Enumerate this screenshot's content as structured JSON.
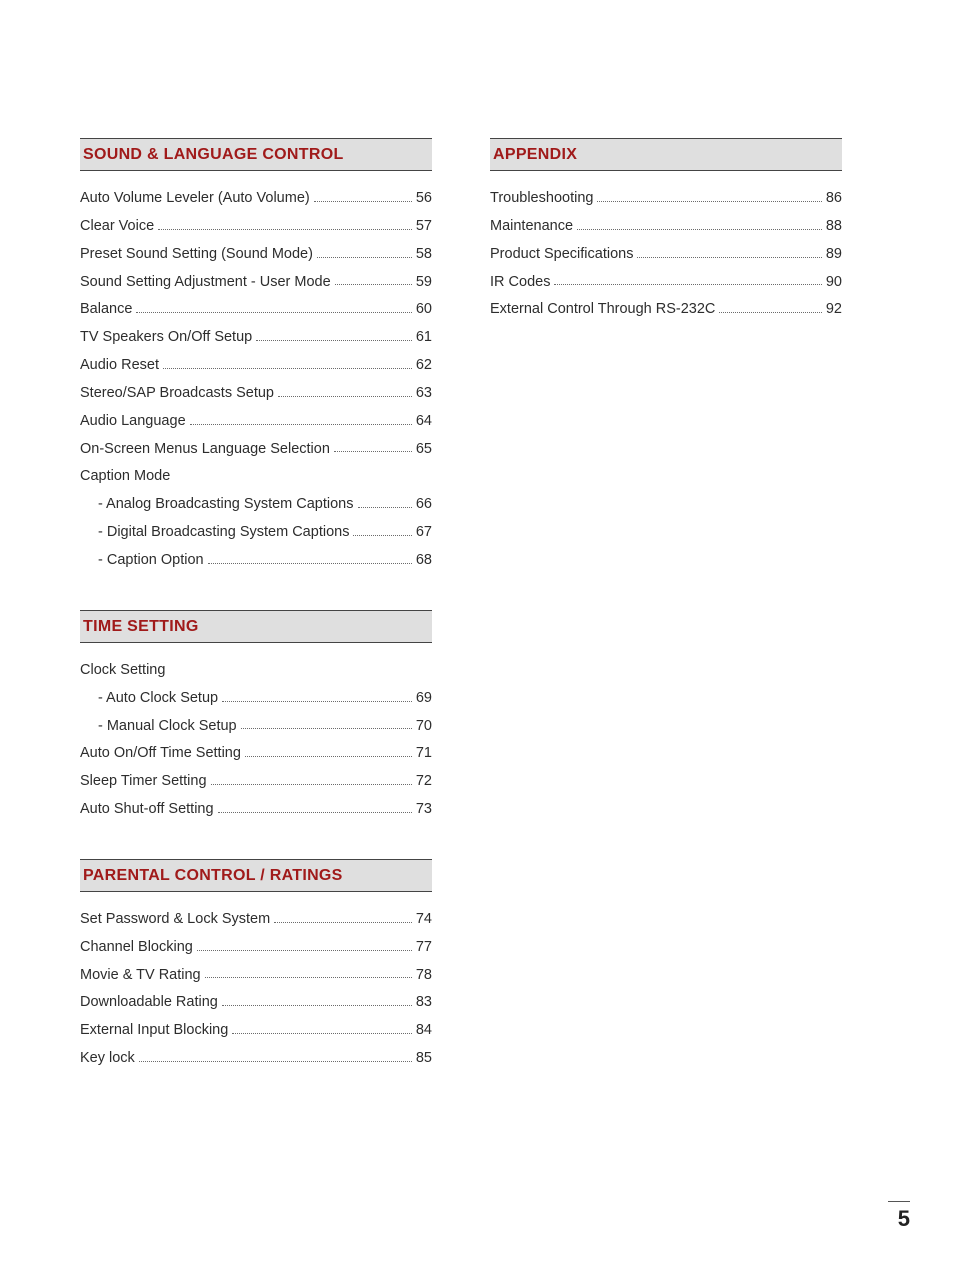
{
  "page_number": "5",
  "colors": {
    "heading_bg": "#dfdfdf",
    "heading_text": "#a01a1a",
    "rule": "#444444",
    "body_text": "#2d2d2d",
    "dot": "#6b6b6b",
    "background": "#ffffff"
  },
  "typography": {
    "heading_fontsize": 16,
    "item_fontsize": 14.5,
    "page_number_fontsize": 22
  },
  "left_column": [
    {
      "title": "SOUND & LANGUAGE CONTROL",
      "items": [
        {
          "label": "Auto Volume Leveler (Auto Volume)",
          "page": "56"
        },
        {
          "label": "Clear Voice",
          "page": "57"
        },
        {
          "label": "Preset Sound Setting (Sound Mode)",
          "page": "58"
        },
        {
          "label": "Sound Setting Adjustment - User Mode",
          "page": "59"
        },
        {
          "label": "Balance",
          "page": "60"
        },
        {
          "label": "TV Speakers On/Off Setup",
          "page": "61"
        },
        {
          "label": "Audio Reset",
          "page": "62"
        },
        {
          "label": "Stereo/SAP Broadcasts Setup",
          "page": "63"
        },
        {
          "label": "Audio Language",
          "page": "64"
        },
        {
          "label": "On-Screen Menus Language Selection",
          "page": "65"
        },
        {
          "label": "Caption Mode",
          "no_page": true
        },
        {
          "label": "- Analog Broadcasting System Captions",
          "page": "66",
          "sub": true
        },
        {
          "label": "- Digital Broadcasting System Captions",
          "page": "67",
          "sub": true
        },
        {
          "label": "- Caption Option",
          "page": "68",
          "sub": true
        }
      ]
    },
    {
      "title": "TIME SETTING",
      "items": [
        {
          "label": "Clock Setting",
          "no_page": true
        },
        {
          "label": "- Auto Clock Setup",
          "page": "69",
          "sub": true
        },
        {
          "label": "- Manual Clock Setup",
          "page": "70",
          "sub": true
        },
        {
          "label": "Auto On/Off Time Setting",
          "page": "71"
        },
        {
          "label": "Sleep Timer Setting",
          "page": "72"
        },
        {
          "label": "Auto Shut-off Setting",
          "page": "73"
        }
      ]
    },
    {
      "title": "PARENTAL CONTROL / RATINGS",
      "items": [
        {
          "label": "Set Password & Lock System",
          "page": "74"
        },
        {
          "label": "Channel Blocking",
          "page": "77"
        },
        {
          "label": "Movie & TV Rating",
          "page": "78"
        },
        {
          "label": "Downloadable Rating",
          "page": "83"
        },
        {
          "label": "External Input Blocking",
          "page": "84"
        },
        {
          "label": "Key lock",
          "page": "85"
        }
      ]
    }
  ],
  "right_column": [
    {
      "title": "APPENDIX",
      "items": [
        {
          "label": "Troubleshooting",
          "page": "86"
        },
        {
          "label": "Maintenance",
          "page": "88"
        },
        {
          "label": "Product Specifications",
          "page": "89"
        },
        {
          "label": "IR Codes",
          "page": "90"
        },
        {
          "label": "External Control Through RS-232C",
          "page": "92"
        }
      ]
    }
  ]
}
